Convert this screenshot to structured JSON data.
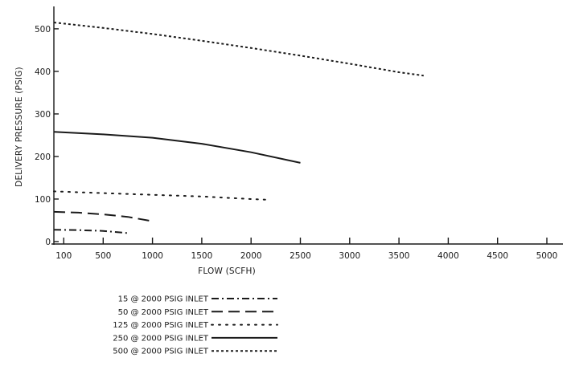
{
  "chart_data": {
    "type": "line",
    "title": "",
    "xlabel": "FLOW (SCFH)",
    "ylabel": "DELIVERY PRESSURE (PSIG)",
    "x_ticks": [
      {
        "label": "100",
        "value": 100
      },
      {
        "label": "500",
        "value": 500
      },
      {
        "label": "1000",
        "value": 1000
      },
      {
        "label": "1500",
        "value": 1500
      },
      {
        "label": "2000",
        "value": 2000
      },
      {
        "label": "2500",
        "value": 2500
      },
      {
        "label": "3000",
        "value": 3000
      },
      {
        "label": "3500",
        "value": 3500
      },
      {
        "label": "4000",
        "value": 4000
      },
      {
        "label": "4500",
        "value": 4500
      },
      {
        "label": "5000",
        "value": 5000
      }
    ],
    "xlim": [
      0,
      5000
    ],
    "y_ticks": [
      0,
      100,
      200,
      300,
      400,
      500
    ],
    "ylim": [
      0,
      530
    ],
    "grid": false,
    "legend_position": "bottom-left",
    "series": [
      {
        "name": "15 @ 2000 PSIG INLET",
        "dash": "dashdot",
        "points": [
          [
            0,
            28
          ],
          [
            250,
            27
          ],
          [
            500,
            25
          ],
          [
            750,
            20
          ]
        ]
      },
      {
        "name": "50 @ 2000 PSIG INLET",
        "dash": "dashed",
        "points": [
          [
            0,
            70
          ],
          [
            250,
            68
          ],
          [
            500,
            64
          ],
          [
            750,
            58
          ],
          [
            1000,
            48
          ]
        ]
      },
      {
        "name": "125 @ 2000 PSIG INLET",
        "dash": "dotted",
        "points": [
          [
            0,
            118
          ],
          [
            500,
            114
          ],
          [
            1000,
            110
          ],
          [
            1500,
            106
          ],
          [
            2000,
            100
          ],
          [
            2200,
            98
          ]
        ]
      },
      {
        "name": "250 @ 2000 PSIG INLET",
        "dash": "solid",
        "points": [
          [
            0,
            258
          ],
          [
            500,
            252
          ],
          [
            1000,
            244
          ],
          [
            1500,
            230
          ],
          [
            2000,
            210
          ],
          [
            2500,
            185
          ]
        ]
      },
      {
        "name": "500 @ 2000 PSIG INLET",
        "dash": "finedash",
        "points": [
          [
            0,
            515
          ],
          [
            500,
            502
          ],
          [
            1000,
            488
          ],
          [
            1500,
            472
          ],
          [
            2000,
            455
          ],
          [
            2500,
            437
          ],
          [
            3000,
            418
          ],
          [
            3500,
            398
          ],
          [
            3750,
            390
          ]
        ]
      }
    ]
  },
  "legend_order": [
    0,
    1,
    2,
    3,
    4
  ]
}
